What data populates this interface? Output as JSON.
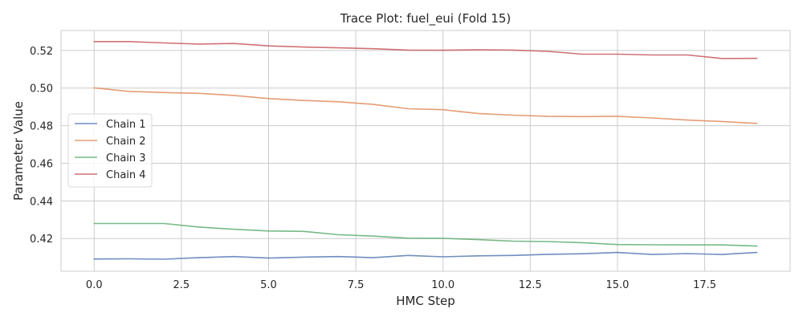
{
  "chart_data": {
    "type": "line",
    "title": "Trace Plot: fuel_eui (Fold 15)",
    "xlabel": "HMC Step",
    "ylabel": "Parameter Value",
    "xlim": [
      -0.95,
      19.95
    ],
    "ylim": [
      0.4026,
      0.5306
    ],
    "x_ticks": [
      0,
      2.5,
      5,
      7.5,
      10,
      12.5,
      15,
      17.5
    ],
    "x_tick_labels": [
      "0.0",
      "2.5",
      "5.0",
      "7.5",
      "10.0",
      "12.5",
      "15.0",
      "17.5"
    ],
    "y_ticks": [
      0.42,
      0.44,
      0.46,
      0.48,
      0.5,
      0.52
    ],
    "y_tick_labels": [
      "0.42",
      "0.44",
      "0.46",
      "0.48",
      "0.50",
      "0.52"
    ],
    "grid": true,
    "legend_position": "center-left",
    "x": [
      0,
      1,
      2,
      3,
      4,
      5,
      6,
      7,
      8,
      9,
      10,
      11,
      12,
      13,
      14,
      15,
      16,
      17,
      18,
      19
    ],
    "series": [
      {
        "name": "Chain 1",
        "color": "#4c72b0",
        "values": [
          0.4091,
          0.4092,
          0.409,
          0.4098,
          0.4104,
          0.4096,
          0.4101,
          0.4104,
          0.4098,
          0.411,
          0.4103,
          0.4108,
          0.411,
          0.4116,
          0.4119,
          0.4126,
          0.4115,
          0.412,
          0.4115,
          0.4126
        ]
      },
      {
        "name": "Chain 2",
        "color": "#dd8452",
        "values": [
          0.5001,
          0.4982,
          0.4976,
          0.4972,
          0.4961,
          0.4944,
          0.4934,
          0.4927,
          0.4913,
          0.489,
          0.4885,
          0.4865,
          0.4856,
          0.485,
          0.4848,
          0.485,
          0.4841,
          0.483,
          0.4822,
          0.4812
        ]
      },
      {
        "name": "Chain 3",
        "color": "#55a868",
        "values": [
          0.428,
          0.428,
          0.428,
          0.4261,
          0.4249,
          0.424,
          0.4238,
          0.422,
          0.4213,
          0.4202,
          0.4201,
          0.4194,
          0.4186,
          0.4184,
          0.4178,
          0.4168,
          0.4167,
          0.4166,
          0.4166,
          0.416
        ]
      },
      {
        "name": "Chain 4",
        "color": "#c44e52",
        "values": [
          0.5247,
          0.5247,
          0.524,
          0.5234,
          0.5237,
          0.5224,
          0.5218,
          0.5214,
          0.5209,
          0.5202,
          0.5201,
          0.5203,
          0.5202,
          0.5195,
          0.518,
          0.518,
          0.5176,
          0.5176,
          0.5157,
          0.5158
        ]
      }
    ]
  }
}
